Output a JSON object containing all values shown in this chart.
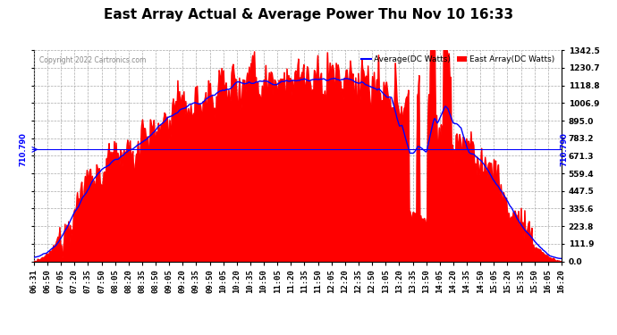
{
  "title": "East Array Actual & Average Power Thu Nov 10 16:33",
  "copyright": "Copyright 2022 Cartronics.com",
  "legend_avg": "Average(DC Watts)",
  "legend_east": "East Array(DC Watts)",
  "ymin": 0.0,
  "ymax": 1342.5,
  "yticks": [
    0.0,
    111.9,
    223.8,
    335.6,
    447.5,
    559.4,
    671.3,
    783.2,
    895.0,
    1006.9,
    1118.8,
    1230.7,
    1342.5
  ],
  "hline_value": 710.79,
  "hline_label": "710.790",
  "bg_color": "#ffffff",
  "fill_color": "#ff0000",
  "avg_color": "#0000ff",
  "grid_color": "#aaaaaa",
  "title_fontsize": 11,
  "tick_fontsize": 6.5,
  "xtick_rotation": 90,
  "x_times": [
    "06:31",
    "06:50",
    "07:05",
    "07:20",
    "07:35",
    "07:50",
    "08:05",
    "08:20",
    "08:35",
    "08:50",
    "09:05",
    "09:20",
    "09:35",
    "09:50",
    "10:05",
    "10:20",
    "10:35",
    "10:50",
    "11:05",
    "11:20",
    "11:35",
    "11:50",
    "12:05",
    "12:20",
    "12:35",
    "12:50",
    "13:05",
    "13:20",
    "13:35",
    "13:50",
    "14:05",
    "14:20",
    "14:35",
    "14:50",
    "15:05",
    "15:20",
    "15:35",
    "15:50",
    "16:05",
    "16:20"
  ]
}
